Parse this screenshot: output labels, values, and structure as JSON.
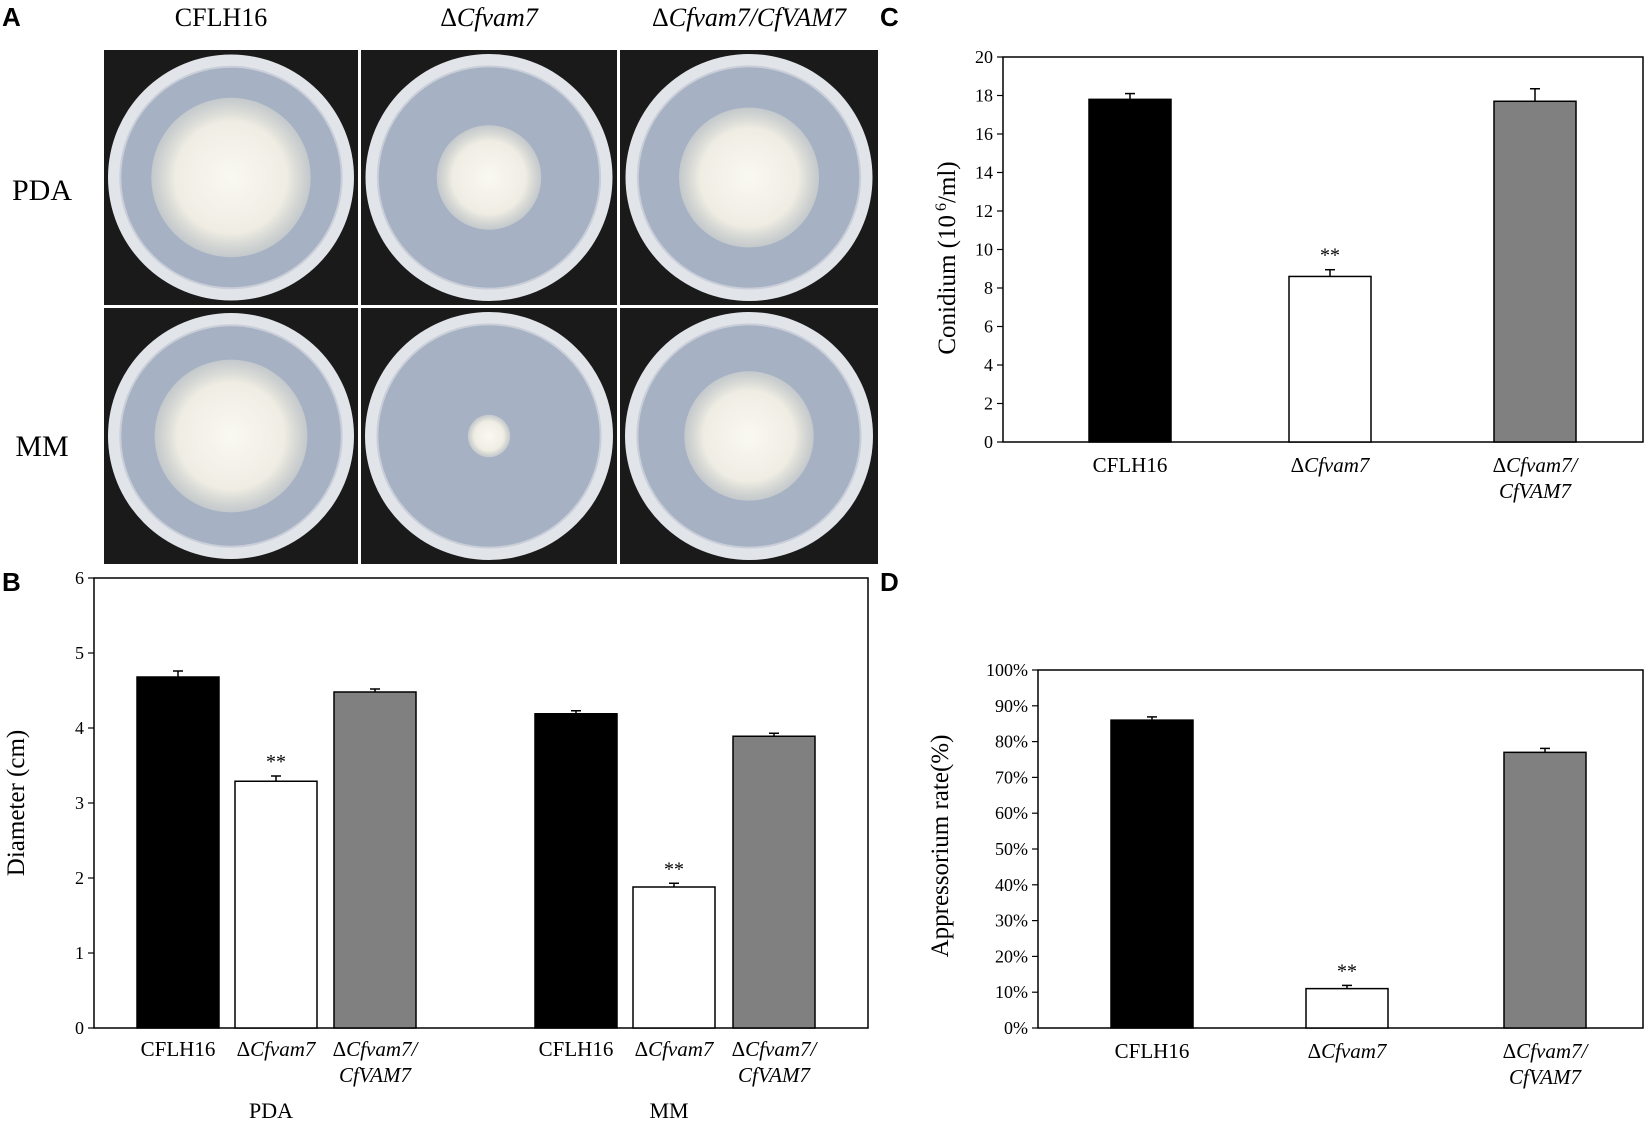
{
  "panels": {
    "A": {
      "letter": "A",
      "columns": [
        {
          "prefix": "",
          "italic": "",
          "text": "CFLH16"
        },
        {
          "prefix": "Δ",
          "italic": "Cfvam7",
          "text": ""
        },
        {
          "prefix": "Δ",
          "italic": "Cfvam7/CfVAM7",
          "text": ""
        }
      ],
      "rows": [
        "PDA",
        "MM"
      ],
      "colony_size": [
        [
          0.72,
          0.47,
          0.63
        ],
        [
          0.69,
          0.19,
          0.58
        ]
      ],
      "colors": {
        "background": "#1a1a1a",
        "agar": "#a6b1c4",
        "colony": "#f4f2e9",
        "rim": "#e1e4e9"
      }
    },
    "B": {
      "letter": "B"
    },
    "C": {
      "letter": "C"
    },
    "D": {
      "letter": "D"
    }
  },
  "chart_data": [
    {
      "id": "B",
      "type": "bar",
      "ylabel": "Diameter (cm)",
      "ylim": [
        0,
        6
      ],
      "yticks": [
        0,
        1,
        2,
        3,
        4,
        5,
        6
      ],
      "groups": [
        {
          "label": "PDA",
          "categories": [
            {
              "prefix": "",
              "italic": "",
              "text": "CFLH16",
              "line2": ""
            },
            {
              "prefix": "Δ",
              "italic": "Cfvam7",
              "text": "",
              "line2": ""
            },
            {
              "prefix": "Δ",
              "italic": "Cfvam7/",
              "text": "",
              "line2": "CfVAM7"
            }
          ],
          "values": [
            4.68,
            3.29,
            4.48
          ],
          "errors": [
            0.08,
            0.07,
            0.04
          ],
          "sig": [
            "",
            "**",
            ""
          ]
        },
        {
          "label": "MM",
          "categories": [
            {
              "prefix": "",
              "italic": "",
              "text": "CFLH16",
              "line2": ""
            },
            {
              "prefix": "Δ",
              "italic": "Cfvam7",
              "text": "",
              "line2": ""
            },
            {
              "prefix": "Δ",
              "italic": "Cfvam7/",
              "text": "",
              "line2": "CfVAM7"
            }
          ],
          "values": [
            4.19,
            1.88,
            3.89
          ],
          "errors": [
            0.04,
            0.05,
            0.04
          ],
          "sig": [
            "",
            "**",
            ""
          ]
        }
      ],
      "colors": [
        "#000000",
        "#ffffff",
        "#808080"
      ],
      "grid": false
    },
    {
      "id": "C",
      "type": "bar",
      "ylabel_main": "Conidium  (10",
      "ylabel_sup": "6",
      "ylabel_tail": "/ml)",
      "ylim": [
        0,
        20
      ],
      "yticks": [
        0,
        2,
        4,
        6,
        8,
        10,
        12,
        14,
        16,
        18,
        20
      ],
      "categories": [
        {
          "prefix": "",
          "italic": "",
          "text": "CFLH16",
          "line2": ""
        },
        {
          "prefix": "Δ",
          "italic": "Cfvam7",
          "text": "",
          "line2": ""
        },
        {
          "prefix": "Δ",
          "italic": "Cfvam7/",
          "text": "",
          "line2": "CfVAM7"
        }
      ],
      "values": [
        17.8,
        8.6,
        17.7
      ],
      "errors": [
        0.3,
        0.35,
        0.65
      ],
      "sig": [
        "",
        "**",
        ""
      ],
      "colors": [
        "#000000",
        "#ffffff",
        "#808080"
      ],
      "grid": false
    },
    {
      "id": "D",
      "type": "bar",
      "ylabel": "Appressorium rate(%)",
      "ylim": [
        0,
        100
      ],
      "yticks": [
        0,
        10,
        20,
        30,
        40,
        50,
        60,
        70,
        80,
        90,
        100
      ],
      "ytick_labels": [
        "0%",
        "10%",
        "20%",
        "30%",
        "40%",
        "50%",
        "60%",
        "70%",
        "80%",
        "90%",
        "100%"
      ],
      "categories": [
        {
          "prefix": "",
          "italic": "",
          "text": "CFLH16",
          "line2": ""
        },
        {
          "prefix": "Δ",
          "italic": "Cfvam7",
          "text": "",
          "line2": ""
        },
        {
          "prefix": "Δ",
          "italic": "Cfvam7/",
          "text": "",
          "line2": "CfVAM7"
        }
      ],
      "values": [
        86,
        11,
        77
      ],
      "errors": [
        0.9,
        0.9,
        1.1
      ],
      "sig": [
        "",
        "**",
        ""
      ],
      "colors": [
        "#000000",
        "#ffffff",
        "#808080"
      ],
      "grid": false
    }
  ]
}
